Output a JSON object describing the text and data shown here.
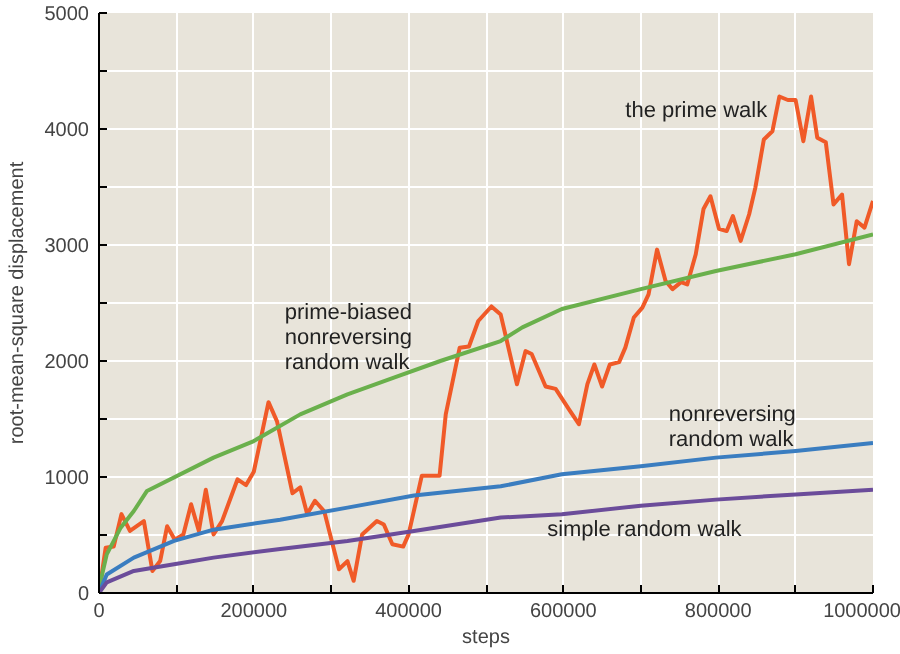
{
  "chart_data": {
    "type": "line",
    "xlabel": "steps",
    "ylabel": "root-mean-square displacement",
    "xlim": [
      0,
      1000000
    ],
    "ylim": [
      0,
      5000
    ],
    "xticks": [
      0,
      {
        "value": 100000,
        "label": null
      },
      200000,
      {
        "value": 300000,
        "label": null
      },
      400000,
      {
        "value": 500000,
        "label": null
      },
      600000,
      {
        "value": 700000,
        "label": null
      },
      800000,
      {
        "value": 900000,
        "label": null
      },
      1000000
    ],
    "yticks": [
      0,
      {
        "value": 500,
        "label": null
      },
      1000,
      {
        "value": 1500,
        "label": null
      },
      2000,
      {
        "value": 2500,
        "label": null
      },
      3000,
      {
        "value": 3500,
        "label": null
      },
      4000,
      {
        "value": 4500,
        "label": null
      },
      5000
    ],
    "grid": true,
    "series": [
      {
        "name": "the prime walk",
        "color": "#f05a28",
        "x": [
          0,
          8600,
          19000,
          29000,
          40000,
          58000,
          69000,
          79000,
          88000,
          98000,
          109000,
          119000,
          129000,
          138000,
          148000,
          159000,
          179000,
          190000,
          200000,
          219000,
          230000,
          250000,
          260000,
          269000,
          279000,
          291000,
          310000,
          321000,
          329000,
          340000,
          359000,
          368000,
          379000,
          393000,
          400000,
          417000,
          440000,
          448000,
          466000,
          478000,
          490000,
          507000,
          519000,
          540000,
          551000,
          559000,
          577000,
          590000,
          607000,
          620000,
          631000,
          640000,
          650000,
          660000,
          672000,
          680000,
          691000,
          702000,
          710000,
          721000,
          732000,
          741000,
          752000,
          760000,
          771000,
          781000,
          790000,
          801000,
          811000,
          819000,
          829000,
          840000,
          848000,
          859000,
          870000,
          879000,
          890000,
          900000,
          910000,
          920000,
          928000,
          939000,
          949000,
          960000,
          969000,
          979000,
          989000,
          1000000
        ],
        "values": [
          0,
          390,
          400,
          680,
          535,
          620,
          190,
          275,
          575,
          460,
          505,
          765,
          535,
          890,
          505,
          620,
          980,
          930,
          1045,
          1645,
          1480,
          860,
          910,
          680,
          795,
          705,
          205,
          275,
          105,
          505,
          620,
          590,
          420,
          400,
          505,
          1010,
          1010,
          1540,
          2115,
          2125,
          2345,
          2470,
          2400,
          1800,
          2085,
          2060,
          1780,
          1760,
          1585,
          1455,
          1800,
          1970,
          1780,
          1970,
          1990,
          2115,
          2375,
          2460,
          2575,
          2960,
          2690,
          2620,
          2680,
          2660,
          2920,
          3310,
          3420,
          3140,
          3120,
          3250,
          3035,
          3265,
          3495,
          3910,
          3980,
          4280,
          4250,
          4250,
          3895,
          4280,
          3925,
          3885,
          3350,
          3435,
          2835,
          3205,
          3150,
          3380
        ]
      },
      {
        "name": "prime-biased\nnonreversing\nrandom walk",
        "color": "#6ab04c",
        "x": [
          0,
          2000,
          10000,
          28000,
          45000,
          62000,
          148000,
          200000,
          260000,
          321000,
          381000,
          441000,
          519000,
          547000,
          598000,
          700000,
          797000,
          900000,
          1000000
        ],
        "values": [
          0,
          100,
          333,
          563,
          707,
          880,
          1167,
          1310,
          1540,
          1713,
          1856,
          2000,
          2172,
          2290,
          2448,
          2620,
          2776,
          2920,
          3092
        ]
      },
      {
        "name": "nonreversing\nrandom walk",
        "color": "#3a7dc0",
        "x": [
          0,
          10000,
          45000,
          97000,
          148000,
          234000,
          321000,
          407000,
          519000,
          598000,
          700000,
          797000,
          900000,
          1000000
        ],
        "values": [
          0,
          160,
          305,
          450,
          546,
          632,
          736,
          840,
          920,
          1023,
          1092,
          1167,
          1224,
          1293
        ]
      },
      {
        "name": "simple random walk",
        "color": "#6b4c9a",
        "x": [
          0,
          10000,
          45000,
          97000,
          148000,
          234000,
          321000,
          407000,
          519000,
          598000,
          700000,
          797000,
          900000,
          1000000
        ],
        "values": [
          0,
          92,
          190,
          247,
          305,
          380,
          448,
          535,
          650,
          678,
          753,
          805,
          850,
          890
        ]
      }
    ]
  }
}
